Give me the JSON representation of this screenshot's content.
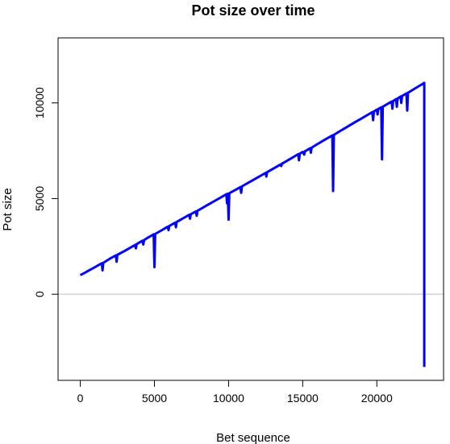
{
  "chart_data": {
    "type": "line",
    "title": "Pot size over time",
    "xlabel": "Bet sequence",
    "ylabel": "Pot size",
    "xlim": [
      -1500,
      24500
    ],
    "ylim": [
      -4500,
      13400
    ],
    "x_ticks": [
      0,
      5000,
      10000,
      15000,
      20000
    ],
    "y_ticks": [
      0,
      5000,
      10000
    ],
    "grid": false,
    "legend": "none",
    "reference_line": {
      "y": 0,
      "color": "#bebebe"
    },
    "series": [
      {
        "color": "#0000ff",
        "points": [
          [
            0,
            1000
          ],
          [
            300,
            1120
          ],
          [
            600,
            1250
          ],
          [
            900,
            1380
          ],
          [
            1200,
            1510
          ],
          [
            1450,
            1620
          ],
          [
            1500,
            1250
          ],
          [
            1550,
            1640
          ],
          [
            2000,
            1860
          ],
          [
            2400,
            2030
          ],
          [
            2450,
            1700
          ],
          [
            2500,
            2060
          ],
          [
            3000,
            2270
          ],
          [
            3500,
            2490
          ],
          [
            3700,
            2580
          ],
          [
            3750,
            2400
          ],
          [
            3800,
            2620
          ],
          [
            4000,
            2710
          ],
          [
            4200,
            2800
          ],
          [
            4250,
            2600
          ],
          [
            4300,
            2830
          ],
          [
            4500,
            2930
          ],
          [
            4950,
            3130
          ],
          [
            5000,
            1420
          ],
          [
            5050,
            3150
          ],
          [
            5500,
            3350
          ],
          [
            5900,
            3530
          ],
          [
            5950,
            3350
          ],
          [
            6000,
            3570
          ],
          [
            6400,
            3740
          ],
          [
            6450,
            3500
          ],
          [
            6500,
            3780
          ],
          [
            7000,
            4000
          ],
          [
            7350,
            4150
          ],
          [
            7400,
            3950
          ],
          [
            7450,
            4180
          ],
          [
            7800,
            4330
          ],
          [
            7850,
            4100
          ],
          [
            7900,
            4360
          ],
          [
            8500,
            4630
          ],
          [
            9000,
            4850
          ],
          [
            9500,
            5070
          ],
          [
            9850,
            5230
          ],
          [
            9900,
            4750
          ],
          [
            9950,
            5250
          ],
          [
            10000,
            3900
          ],
          [
            10050,
            5280
          ],
          [
            10500,
            5470
          ],
          [
            10800,
            5600
          ],
          [
            10850,
            5300
          ],
          [
            10900,
            5640
          ],
          [
            11500,
            5900
          ],
          [
            12000,
            6120
          ],
          [
            12500,
            6340
          ],
          [
            12550,
            6150
          ],
          [
            12600,
            6380
          ],
          [
            13000,
            6560
          ],
          [
            13500,
            6780
          ],
          [
            13550,
            6700
          ],
          [
            13600,
            6820
          ],
          [
            14000,
            7000
          ],
          [
            14500,
            7230
          ],
          [
            14700,
            7320
          ],
          [
            14750,
            7000
          ],
          [
            14800,
            7350
          ],
          [
            15000,
            7440
          ],
          [
            15100,
            7300
          ],
          [
            15150,
            7470
          ],
          [
            15500,
            7630
          ],
          [
            15550,
            7400
          ],
          [
            15600,
            7660
          ],
          [
            16000,
            7850
          ],
          [
            16500,
            8080
          ],
          [
            17000,
            8300
          ],
          [
            17050,
            5400
          ],
          [
            17100,
            8330
          ],
          [
            17500,
            8520
          ],
          [
            18000,
            8750
          ],
          [
            18500,
            8980
          ],
          [
            19000,
            9200
          ],
          [
            19500,
            9430
          ],
          [
            19700,
            9520
          ],
          [
            19750,
            9100
          ],
          [
            19800,
            9550
          ],
          [
            20000,
            9650
          ],
          [
            20050,
            9400
          ],
          [
            20100,
            9680
          ],
          [
            20300,
            9770
          ],
          [
            20350,
            7050
          ],
          [
            20400,
            9800
          ],
          [
            20800,
            9980
          ],
          [
            21000,
            10070
          ],
          [
            21050,
            9700
          ],
          [
            21100,
            10100
          ],
          [
            21300,
            10200
          ],
          [
            21350,
            9800
          ],
          [
            21400,
            10230
          ],
          [
            21600,
            10330
          ],
          [
            21650,
            10000
          ],
          [
            21700,
            10360
          ],
          [
            22000,
            10500
          ],
          [
            22050,
            9600
          ],
          [
            22100,
            10530
          ],
          [
            22500,
            10720
          ],
          [
            23100,
            11000
          ],
          [
            23200,
            11050
          ],
          [
            23200,
            -3800
          ]
        ]
      }
    ]
  }
}
